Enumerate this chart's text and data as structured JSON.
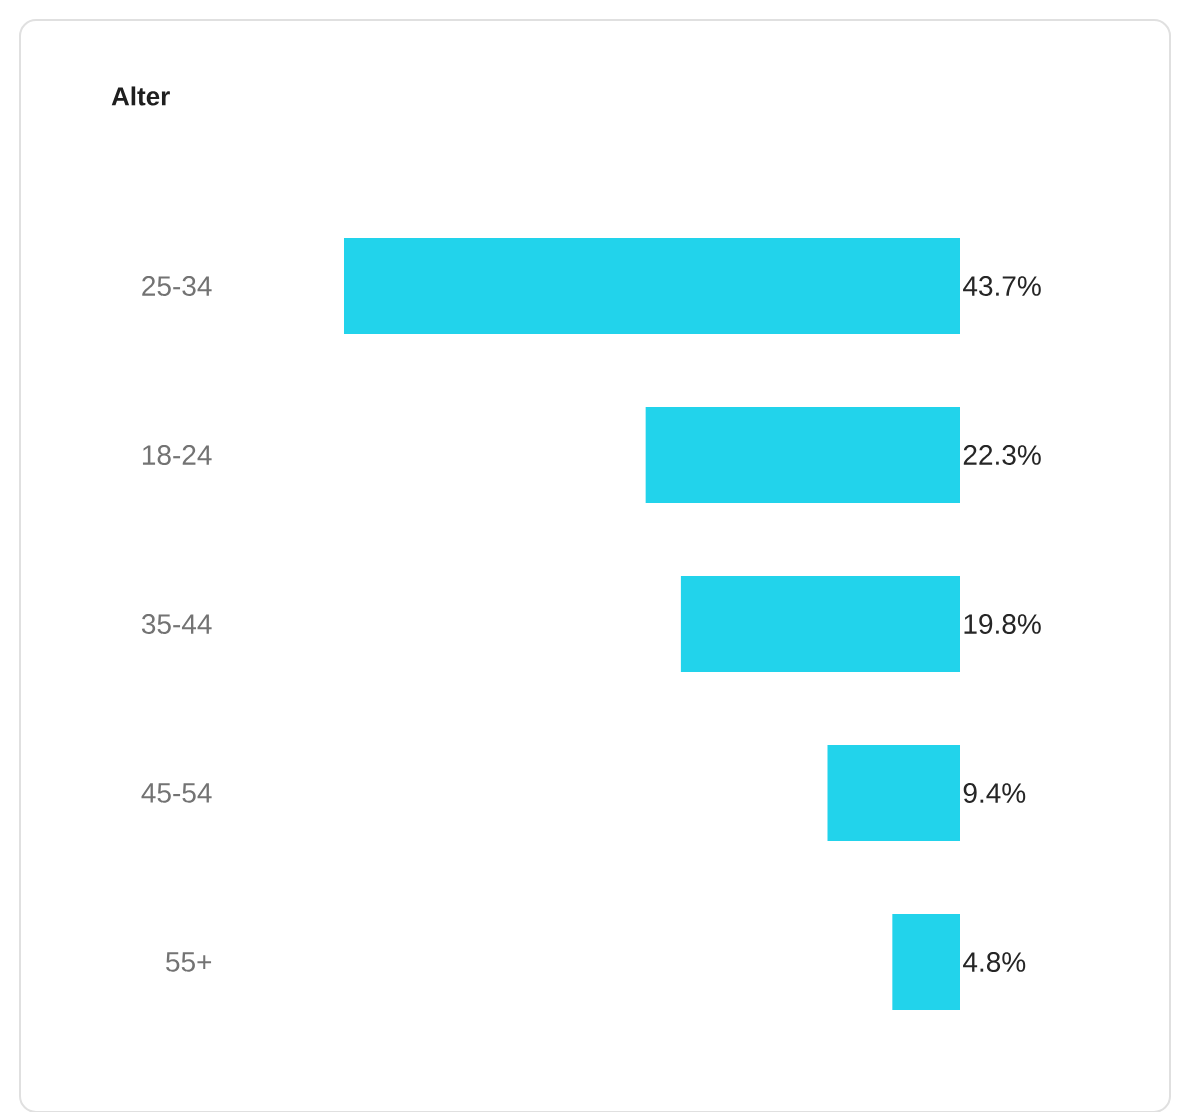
{
  "chart_data": {
    "type": "bar",
    "title": "Alter",
    "orientation": "horizontal",
    "categories": [
      "25-34",
      "18-24",
      "35-44",
      "45-54",
      "55+"
    ],
    "values": [
      43.7,
      22.3,
      19.8,
      9.4,
      4.8
    ],
    "value_labels": [
      "43.7%",
      "22.3%",
      "19.8%",
      "9.4%",
      "4.8%"
    ],
    "color": "#22d3eb"
  }
}
